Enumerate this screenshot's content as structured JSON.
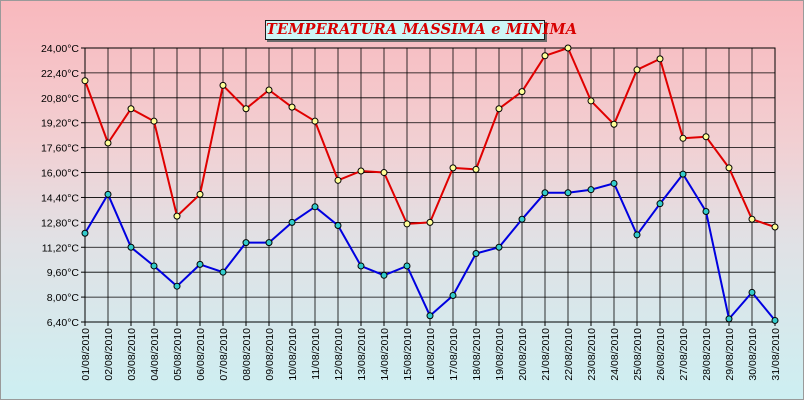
{
  "chart_data": {
    "type": "line",
    "title": "TEMPERATURA MASSIMA e MINIMA",
    "xlabel": "",
    "ylabel": "",
    "x": [
      "01/08/2010",
      "02/08/2010",
      "03/08/2010",
      "04/08/2010",
      "05/08/2010",
      "06/08/2010",
      "07/08/2010",
      "08/08/2010",
      "09/08/2010",
      "10/08/2010",
      "11/08/2010",
      "12/08/2010",
      "13/08/2010",
      "14/08/2010",
      "15/08/2010",
      "16/08/2010",
      "17/08/2010",
      "18/08/2010",
      "19/08/2010",
      "20/08/2010",
      "21/08/2010",
      "22/08/2010",
      "23/08/2010",
      "24/08/2010",
      "25/08/2010",
      "26/08/2010",
      "27/08/2010",
      "28/08/2010",
      "29/08/2010",
      "30/08/2010",
      "31/08/2010"
    ],
    "y_ticks": [
      "24,00°C",
      "22,40°C",
      "20,80°C",
      "19,20°C",
      "17,60°C",
      "16,00°C",
      "14,40°C",
      "12,80°C",
      "11,20°C",
      "9,60°C",
      "8,00°C",
      "6,40°C"
    ],
    "ylim": [
      6.4,
      24.0
    ],
    "grid": true,
    "legend": "none",
    "series": [
      {
        "color": "#e00000",
        "marker_color": "#ffff99",
        "values": [
          21.9,
          17.9,
          20.1,
          19.3,
          13.2,
          14.6,
          21.6,
          20.1,
          21.3,
          20.2,
          19.3,
          15.5,
          16.1,
          16.0,
          12.7,
          12.8,
          16.3,
          16.2,
          20.1,
          21.2,
          23.5,
          24.0,
          20.6,
          19.1,
          22.6,
          23.3,
          18.2,
          18.3,
          16.3,
          13.0,
          12.5
        ]
      },
      {
        "color": "#0000e0",
        "marker_color": "#33cccc",
        "values": [
          12.1,
          14.6,
          11.2,
          10.0,
          8.7,
          10.1,
          9.6,
          11.5,
          11.5,
          12.8,
          13.8,
          12.6,
          10.0,
          9.4,
          10.0,
          6.8,
          8.1,
          10.8,
          11.2,
          13.0,
          14.7,
          14.7,
          14.9,
          15.3,
          12.0,
          14.0,
          15.9,
          13.5,
          6.6,
          8.3,
          6.5
        ]
      }
    ]
  }
}
